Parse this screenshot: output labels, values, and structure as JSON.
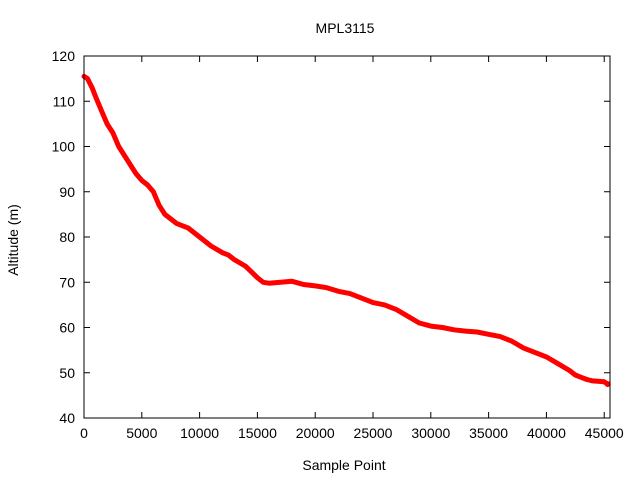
{
  "chart_data": {
    "type": "line",
    "title": "MPL3115",
    "xlabel": "Sample Point",
    "ylabel": "Altitude (m)",
    "xlim": [
      0,
      45500
    ],
    "ylim": [
      40,
      120
    ],
    "xticks": [
      0,
      5000,
      10000,
      15000,
      20000,
      25000,
      30000,
      35000,
      40000,
      45000
    ],
    "yticks": [
      40,
      50,
      60,
      70,
      80,
      90,
      100,
      110,
      120
    ],
    "grid": false,
    "legend": "none",
    "series_color": "#ff0000",
    "series": [
      {
        "x": [
          0,
          300,
          700,
          1000,
          1500,
          2000,
          2500,
          3000,
          3500,
          4000,
          4500,
          5000,
          5500,
          6000,
          6500,
          7000,
          7500,
          8000,
          9000,
          10000,
          11000,
          12000,
          12500,
          13000,
          14000,
          15000,
          15500,
          16000,
          17000,
          18000,
          19000,
          20000,
          21000,
          22000,
          23000,
          24000,
          25000,
          26000,
          27000,
          28000,
          29000,
          30000,
          31000,
          32000,
          33000,
          34000,
          35000,
          36000,
          37000,
          38000,
          39000,
          40000,
          41000,
          42000,
          42500,
          43000,
          43500,
          44000,
          45000,
          45300
        ],
        "y": [
          115.5,
          115,
          113,
          111,
          108,
          105,
          103,
          100,
          98,
          96,
          94,
          92.5,
          91.5,
          90,
          87,
          85,
          84,
          83,
          82,
          80,
          78,
          76.5,
          76,
          75,
          73.5,
          71,
          70,
          69.8,
          70,
          70.2,
          69.5,
          69.2,
          68.8,
          68,
          67.5,
          66.5,
          65.5,
          65,
          64,
          62.5,
          61,
          60.3,
          60,
          59.5,
          59.2,
          59,
          58.5,
          58,
          57,
          55.5,
          54.5,
          53.5,
          52,
          50.5,
          49.5,
          49,
          48.5,
          48.2,
          48,
          47.5
        ]
      }
    ]
  }
}
